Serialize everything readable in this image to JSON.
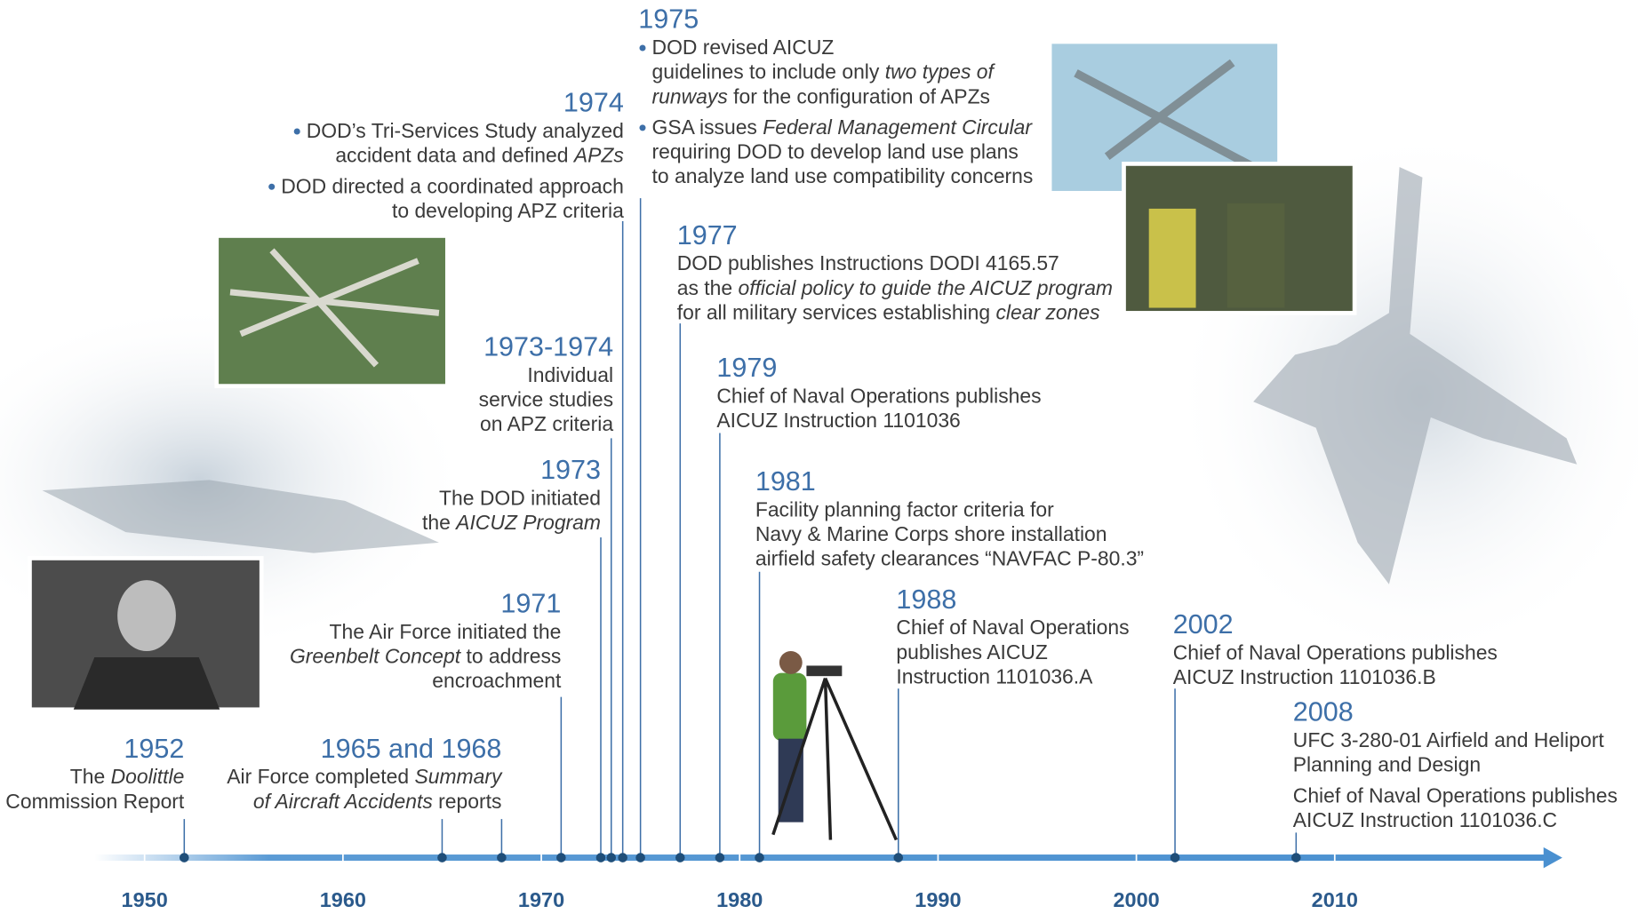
{
  "axis": {
    "labels": [
      "1950",
      "1960",
      "1970",
      "1980",
      "1990",
      "2000",
      "2010"
    ]
  },
  "events": [
    {
      "year": "1952",
      "paragraphs": [
        [
          [
            "The ",
            "Doolittle"
          ],
          [
            "Commission Report"
          ]
        ]
      ]
    },
    {
      "year": "1965 and 1968",
      "paragraphs": [
        [
          [
            "Air Force completed ",
            "Summary"
          ],
          [
            "",
            "of Aircraft Accidents",
            " reports"
          ]
        ]
      ]
    },
    {
      "year": "1971",
      "paragraphs": [
        [
          [
            "The Air Force initiated the"
          ],
          [
            "",
            "Greenbelt Concept",
            " to address"
          ],
          [
            "encroachment"
          ]
        ]
      ]
    },
    {
      "year": "1973",
      "paragraphs": [
        [
          [
            "The DOD initiated"
          ],
          [
            "the ",
            "AICUZ Program"
          ]
        ]
      ]
    },
    {
      "year": "1973-1974",
      "paragraphs": [
        [
          [
            "Individual"
          ],
          [
            "service studies"
          ],
          [
            "on APZ criteria"
          ]
        ]
      ]
    },
    {
      "year": "1974",
      "bulleted": true,
      "paragraphs": [
        [
          [
            "DOD’s Tri-Services Study analyzed"
          ],
          [
            "accident data and defined ",
            "APZs"
          ]
        ],
        [
          [
            "DOD directed a coordinated approach"
          ],
          [
            "to developing APZ criteria"
          ]
        ]
      ]
    },
    {
      "year": "1975",
      "bulleted": true,
      "paragraphs": [
        [
          [
            "DOD revised AICUZ"
          ],
          [
            "guidelines to include only ",
            "two types of"
          ],
          [
            "",
            "runways",
            " for the configuration of APZs"
          ]
        ],
        [
          [
            "GSA issues ",
            "Federal Management Circular"
          ],
          [
            "requiring DOD to develop land use plans"
          ],
          [
            "to analyze land use compatibility concerns"
          ]
        ]
      ]
    },
    {
      "year": "1977",
      "paragraphs": [
        [
          [
            "DOD publishes Instructions DODI 4165.57"
          ],
          [
            "as the ",
            "official policy to guide the AICUZ program"
          ],
          [
            "for all military services establishing ",
            "clear zones"
          ]
        ]
      ]
    },
    {
      "year": "1979",
      "paragraphs": [
        [
          [
            "Chief of Naval Operations publishes"
          ],
          [
            "AICUZ Instruction 1101036"
          ]
        ]
      ]
    },
    {
      "year": "1981",
      "paragraphs": [
        [
          [
            "Facility planning factor criteria for"
          ],
          [
            "Navy & Marine Corps shore installation"
          ],
          [
            "airfield safety clearances “NAVFAC P-80.3”"
          ]
        ]
      ]
    },
    {
      "year": "1988",
      "paragraphs": [
        [
          [
            "Chief of Naval Operations"
          ],
          [
            "publishes AICUZ"
          ],
          [
            "Instruction 1101036.A"
          ]
        ]
      ]
    },
    {
      "year": "2002",
      "paragraphs": [
        [
          [
            "Chief of Naval Operations publishes"
          ],
          [
            "AICUZ Instruction 1101036.B"
          ]
        ]
      ]
    },
    {
      "year": "2008",
      "paragraphs": [
        [
          [
            "UFC 3-280-01 Airfield and Heliport"
          ],
          [
            "Planning and Design"
          ]
        ],
        [
          [
            "Chief of Naval Operations publishes"
          ],
          [
            "AICUZ Instruction 1101036.C"
          ]
        ]
      ]
    }
  ]
}
